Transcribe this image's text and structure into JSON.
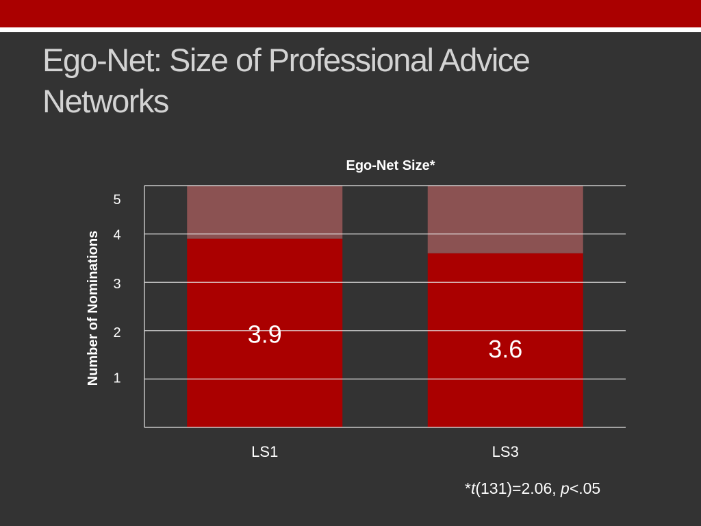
{
  "slide": {
    "title": "Ego-Net: Size of Professional Advice Networks",
    "footnote": {
      "star": "*",
      "t": "t",
      "stat": "(131)=2.06, ",
      "p": "p",
      "sig": "<.05"
    }
  },
  "colors": {
    "top_bar": "#aa0000",
    "bar_fill": "#aa0000",
    "bar_remainder": "#8b5252",
    "background": "#333333"
  },
  "chart_data": {
    "type": "bar",
    "title": "Ego-Net Size*",
    "ylabel": "Number of Nominations",
    "xlabel": "",
    "categories": [
      "LS1",
      "LS3"
    ],
    "values": [
      3.9,
      3.6
    ],
    "data_labels": [
      "3.9",
      "3.6"
    ],
    "ylim": [
      0,
      5
    ],
    "yticks": [
      "1",
      "2",
      "3",
      "4",
      "5"
    ],
    "grid": true,
    "stacked_remainder_to": 5,
    "legend": "none"
  }
}
